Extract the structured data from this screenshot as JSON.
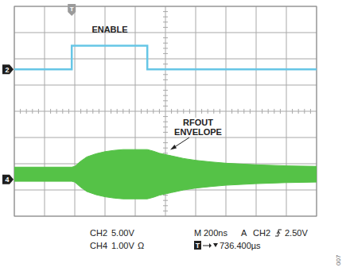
{
  "chart_data": {
    "type": "oscilloscope",
    "grid": true,
    "tick_labels": false,
    "xlim": [
      0,
      2000
    ],
    "xticks": [
      0,
      200,
      400,
      600,
      800,
      1000,
      1200,
      1400,
      1600,
      1800,
      2000
    ],
    "ylim": [
      -4,
      4
    ],
    "yticks": [
      -4,
      -3,
      -2,
      -1,
      0,
      1,
      2,
      3,
      4
    ],
    "timebase": {
      "prefix": "M",
      "value": 200,
      "label": "200ns"
    },
    "trigger": {
      "marker": "T",
      "x": 380,
      "mode": "A",
      "source": "CH2",
      "level": {
        "value": 2.5,
        "label": "2.50V"
      },
      "delay_icon": "T",
      "delay": {
        "value": 736.4,
        "label": "736.400µs"
      }
    },
    "channels": [
      {
        "marker": "2",
        "name": "CH2",
        "type": "line",
        "color": "#66c6e6",
        "scale": {
          "value": 5,
          "label": "5.00V"
        },
        "position": 1.6,
        "label": [
          "ENABLE"
        ],
        "x": [
          0,
          380,
          380,
          880,
          880,
          2000
        ],
        "values": [
          0,
          0,
          4.5,
          4.5,
          0,
          0
        ]
      },
      {
        "marker": "4",
        "name": "CH4",
        "type": "envelope",
        "color": "#55c247",
        "scale": {
          "value": 1,
          "label": "1.00V"
        },
        "coupling": "Ω",
        "position": -2.6,
        "center": 0.2,
        "label": [
          "RFOUT",
          "ENVELOPE"
        ],
        "x": [
          0,
          380,
          400,
          440,
          480,
          540,
          600,
          660,
          720,
          880,
          920,
          960,
          1040,
          1120,
          1200,
          1300,
          1400,
          1500,
          1600,
          1700,
          1800,
          1900,
          2000
        ],
        "values": [
          0.27,
          0.27,
          0.3,
          0.5,
          0.66,
          0.78,
          0.86,
          0.91,
          0.94,
          0.94,
          0.88,
          0.8,
          0.7,
          0.6,
          0.53,
          0.47,
          0.42,
          0.39,
          0.36,
          0.34,
          0.32,
          0.31,
          0.3
        ]
      }
    ],
    "figure_id": "007"
  }
}
